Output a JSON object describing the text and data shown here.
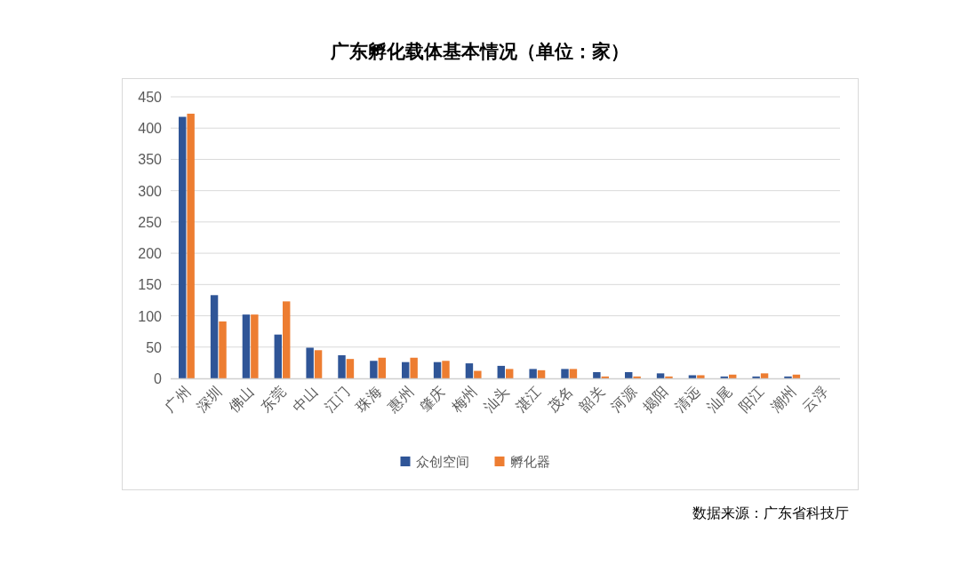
{
  "chart_data": {
    "type": "bar",
    "title": "广东孵化载体基本情况（单位：家）",
    "categories": [
      "广州",
      "深圳",
      "佛山",
      "东莞",
      "中山",
      "江门",
      "珠海",
      "惠州",
      "肇庆",
      "梅州",
      "汕头",
      "湛江",
      "茂名",
      "韶关",
      "河源",
      "揭阳",
      "清远",
      "汕尾",
      "阳江",
      "潮州",
      "云浮"
    ],
    "series": [
      {
        "name": "众创空间",
        "color": "#2f5597",
        "values": [
          418,
          133,
          102,
          70,
          49,
          37,
          28,
          26,
          26,
          24,
          20,
          15,
          15,
          10,
          10,
          8,
          5,
          3,
          3,
          3,
          0
        ]
      },
      {
        "name": "孵化器",
        "color": "#ed7d31",
        "values": [
          423,
          91,
          102,
          123,
          45,
          31,
          33,
          33,
          28,
          12,
          15,
          13,
          15,
          3,
          3,
          3,
          5,
          6,
          8,
          6,
          0
        ]
      }
    ],
    "ylim": [
      0,
      450
    ],
    "yticks": [
      0,
      50,
      100,
      150,
      200,
      250,
      300,
      350,
      400,
      450
    ],
    "grid": "y",
    "legend": "bottom",
    "annotations": [
      "数据来源：广东省科技厅"
    ]
  }
}
